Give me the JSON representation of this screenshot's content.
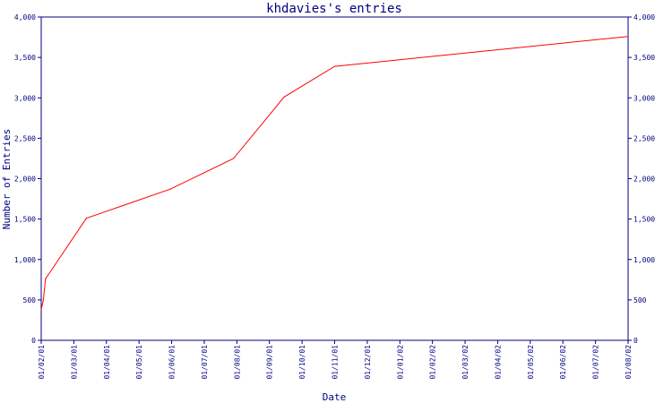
{
  "chart_data": {
    "type": "line",
    "title": "khdavies's entries",
    "xlabel": "Date",
    "ylabel": "Number of Entries",
    "x_ticks": [
      "01/02/01",
      "01/03/01",
      "01/04/01",
      "01/05/01",
      "01/06/01",
      "01/07/01",
      "01/08/01",
      "01/09/01",
      "01/10/01",
      "01/11/01",
      "01/12/01",
      "01/01/02",
      "01/02/02",
      "01/03/02",
      "01/04/02",
      "01/05/02",
      "01/06/02",
      "01/07/02",
      "01/08/02"
    ],
    "y_ticks": [
      "0",
      "500",
      "1,000",
      "1,500",
      "2,000",
      "2,500",
      "3,000",
      "3,500",
      "4,000"
    ],
    "ylim": [
      0,
      4000
    ],
    "xlim": [
      "2001-02-01",
      "2002-08-01"
    ],
    "grid": false,
    "series": [
      {
        "color": "#ff0000",
        "points": [
          {
            "x": "2001-02-01",
            "y": 380
          },
          {
            "x": "2001-02-03",
            "y": 500
          },
          {
            "x": "2001-02-05",
            "y": 760
          },
          {
            "x": "2001-03-15",
            "y": 1510
          },
          {
            "x": "2001-06-01",
            "y": 1870
          },
          {
            "x": "2001-07-30",
            "y": 2250
          },
          {
            "x": "2001-09-15",
            "y": 3010
          },
          {
            "x": "2001-11-01",
            "y": 3390
          },
          {
            "x": "2002-08-01",
            "y": 3760
          }
        ]
      }
    ]
  }
}
